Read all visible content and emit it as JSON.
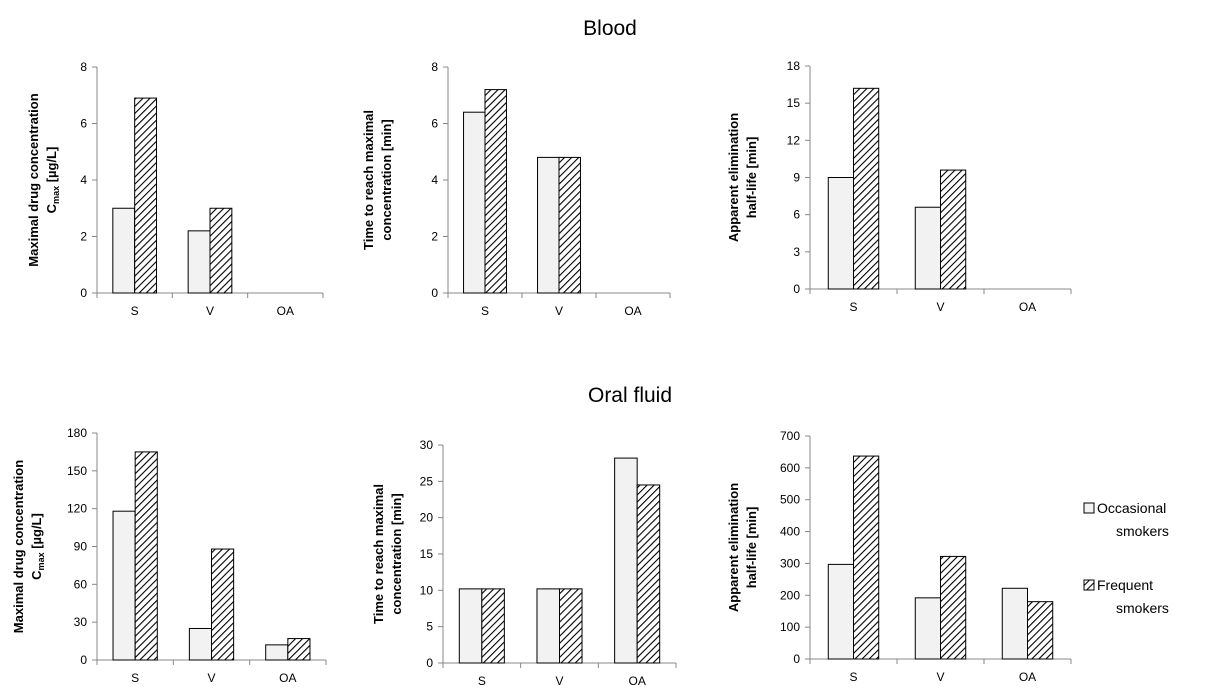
{
  "sections": {
    "blood_title": "Blood",
    "oral_title": "Oral fluid"
  },
  "legend": {
    "occasional": [
      "Occasional",
      "smokers"
    ],
    "frequent": [
      "Frequent",
      "smokers"
    ]
  },
  "colors": {
    "occasional_fill": "#f2f2f2",
    "frequent_hatch": "#000000",
    "axis": "#888888"
  },
  "chart_data": [
    {
      "type": "bar",
      "group": "Blood",
      "categories": [
        "S",
        "V",
        "OA"
      ],
      "series": [
        {
          "name": "Occasional smokers",
          "values": [
            3.0,
            2.2,
            0
          ]
        },
        {
          "name": "Frequent smokers",
          "values": [
            6.9,
            3.0,
            0
          ]
        }
      ],
      "ylabel": [
        "Maximal drug concentration",
        "C",
        "max",
        " [µg/L]"
      ],
      "ylim": [
        0,
        8
      ],
      "yticks": [
        0,
        2,
        4,
        6,
        8
      ]
    },
    {
      "type": "bar",
      "group": "Blood",
      "categories": [
        "S",
        "V",
        "OA"
      ],
      "series": [
        {
          "name": "Occasional smokers",
          "values": [
            6.4,
            4.8,
            0
          ]
        },
        {
          "name": "Frequent smokers",
          "values": [
            7.2,
            4.8,
            0
          ]
        }
      ],
      "ylabel": [
        "Time to reach maximal",
        "concentration [min]"
      ],
      "ylim": [
        0,
        8
      ],
      "yticks": [
        0,
        2,
        4,
        6,
        8
      ]
    },
    {
      "type": "bar",
      "group": "Blood",
      "categories": [
        "S",
        "V",
        "OA"
      ],
      "series": [
        {
          "name": "Occasional smokers",
          "values": [
            9.0,
            6.6,
            0
          ]
        },
        {
          "name": "Frequent smokers",
          "values": [
            16.2,
            9.6,
            0
          ]
        }
      ],
      "ylabel": [
        "Apparent elimination",
        "half-life [min]"
      ],
      "ylim": [
        0,
        18
      ],
      "yticks": [
        0,
        3,
        6,
        9,
        12,
        15,
        18
      ]
    },
    {
      "type": "bar",
      "group": "Oral fluid",
      "categories": [
        "S",
        "V",
        "OA"
      ],
      "series": [
        {
          "name": "Occasional smokers",
          "values": [
            118,
            25,
            12
          ]
        },
        {
          "name": "Frequent smokers",
          "values": [
            165,
            88,
            17
          ]
        }
      ],
      "ylabel": [
        "Maximal drug concentration",
        "C",
        "max",
        " [µg/L]"
      ],
      "ylim": [
        0,
        180
      ],
      "yticks": [
        0,
        30,
        60,
        90,
        120,
        150,
        180
      ]
    },
    {
      "type": "bar",
      "group": "Oral fluid",
      "categories": [
        "S",
        "V",
        "OA"
      ],
      "series": [
        {
          "name": "Occasional smokers",
          "values": [
            10.2,
            10.2,
            28.2
          ]
        },
        {
          "name": "Frequent smokers",
          "values": [
            10.2,
            10.2,
            24.5
          ]
        }
      ],
      "ylabel": [
        "Time to reach maximal",
        "concentration [min]"
      ],
      "ylim": [
        0,
        30
      ],
      "yticks": [
        0,
        5,
        10,
        15,
        20,
        25,
        30
      ]
    },
    {
      "type": "bar",
      "group": "Oral fluid",
      "categories": [
        "S",
        "V",
        "OA"
      ],
      "series": [
        {
          "name": "Occasional smokers",
          "values": [
            297,
            192,
            222
          ]
        },
        {
          "name": "Frequent smokers",
          "values": [
            637,
            322,
            180
          ]
        }
      ],
      "ylabel": [
        "Apparent elimination",
        "half-life [min]"
      ],
      "ylim": [
        0,
        700
      ],
      "yticks": [
        0,
        100,
        200,
        300,
        400,
        500,
        600,
        700
      ]
    }
  ]
}
